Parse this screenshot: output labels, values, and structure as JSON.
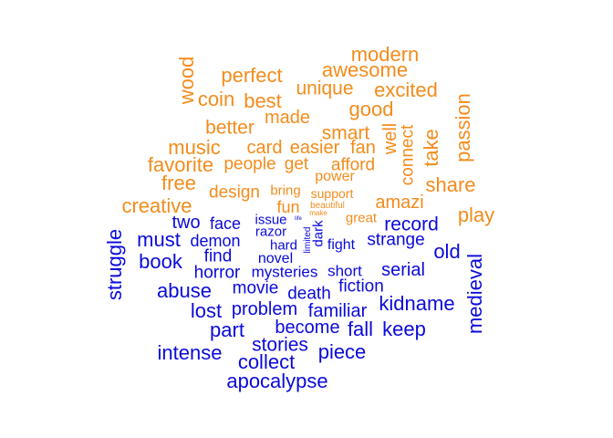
{
  "colors": {
    "positive": "#F28C1C",
    "negative": "#0A0ADB"
  },
  "positive_words": [
    "modern",
    "wood",
    "perfect",
    "awesome",
    "unique",
    "excited",
    "coin",
    "best",
    "good",
    "passion",
    "made",
    "better",
    "smart",
    "well",
    "take",
    "connect",
    "music",
    "card",
    "easier",
    "fan",
    "favorite",
    "people",
    "get",
    "afford",
    "power",
    "share",
    "free",
    "bring",
    "design",
    "support",
    "creative",
    "fun",
    "amazi",
    "play",
    "beautiful",
    "make",
    "great"
  ],
  "negative_words": [
    "two",
    "face",
    "issue",
    "life",
    "record",
    "must",
    "razor",
    "dark",
    "demon",
    "strange",
    "struggle",
    "limited",
    "old",
    "hard",
    "fight",
    "book",
    "find",
    "novel",
    "horror",
    "mysteries",
    "short",
    "serial",
    "medieval",
    "abuse",
    "movie",
    "death",
    "fiction",
    "kidname",
    "lost",
    "problem",
    "familiar",
    "part",
    "become",
    "fall",
    "keep",
    "stories",
    "intense",
    "piece",
    "collect",
    "apocalypse"
  ]
}
